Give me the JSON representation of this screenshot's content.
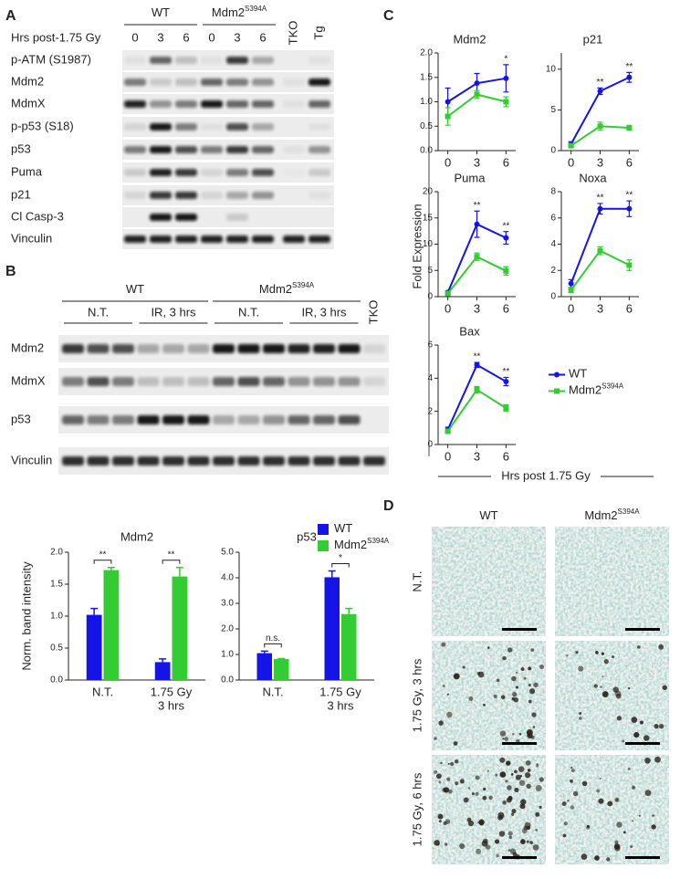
{
  "panel_labels": [
    "A",
    "B",
    "C",
    "D"
  ],
  "blot_a": {
    "groups": [
      {
        "text": "WT"
      },
      {
        "text": "Mdm2",
        "sup": "S394A"
      }
    ],
    "time_label": "Hrs post-1.75 Gy",
    "lanes": [
      "0",
      "3",
      "6",
      "0",
      "3",
      "6"
    ],
    "controls": [
      "TKO",
      "Tg"
    ],
    "rows": [
      "p-ATM (S1987)",
      "Mdm2",
      "MdmX",
      "p-p53 (S18)",
      "p53",
      "Puma",
      "p21",
      "Cl Casp-3",
      "Vinculin"
    ]
  },
  "blot_b": {
    "groups": [
      {
        "text": "WT"
      },
      {
        "text": "Mdm2",
        "sup": "S394A"
      }
    ],
    "treatments": [
      "N.T.",
      "IR, 3 hrs",
      "N.T.",
      "IR, 3 hrs"
    ],
    "controls": [
      "TKO"
    ],
    "rows": [
      "Mdm2",
      "MdmX",
      "p53",
      "Vinculin"
    ]
  },
  "bar_y_label": "Norm. band intensity",
  "line_y_label": "Fold Expression",
  "line_x_label": "Hrs post 1.75 Gy",
  "chart_data": [
    {
      "type": "bar",
      "title": "Mdm2",
      "categories": [
        [
          "N.T."
        ],
        [
          "1.75 Gy",
          "3 hrs"
        ]
      ],
      "series": [
        {
          "color": "#1414e6",
          "values": [
            1.02,
            0.28
          ],
          "errors": [
            0.1,
            0.05
          ]
        },
        {
          "color": "#33cc33",
          "values": [
            1.72,
            1.62
          ],
          "errors": [
            0.04,
            0.14
          ]
        }
      ],
      "annotations": [
        "**",
        "**"
      ],
      "ylim": [
        0,
        2
      ],
      "yticks": [
        {
          "value": 0,
          "label": "0.0"
        },
        {
          "value": 0.5,
          "label": "0.5"
        },
        {
          "value": 1,
          "label": "1.0"
        },
        {
          "value": 1.5,
          "label": "1.5"
        },
        {
          "value": 2,
          "label": "2.0"
        }
      ]
    },
    {
      "type": "bar",
      "title": "p53",
      "categories": [
        [
          "N.T."
        ],
        [
          "1.75 Gy",
          "3 hrs"
        ]
      ],
      "series": [
        {
          "name": "WT",
          "color": "#1414e6",
          "values": [
            1.05,
            4.02
          ],
          "errors": [
            0.08,
            0.25
          ]
        },
        {
          "name": "Mdm2",
          "name_sup": "S394A",
          "color": "#33cc33",
          "values": [
            0.82,
            2.58
          ],
          "errors": [
            0.02,
            0.22
          ]
        }
      ],
      "annotations": [
        "n.s.",
        "*"
      ],
      "ylim": [
        0,
        5
      ],
      "legend": "upper right",
      "yticks": [
        {
          "value": 0,
          "label": "0.0"
        },
        {
          "value": 1,
          "label": "1.0"
        },
        {
          "value": 2,
          "label": "2.0"
        },
        {
          "value": 3,
          "label": "3.0"
        },
        {
          "value": 4,
          "label": "4.0"
        },
        {
          "value": 5,
          "label": "5.0"
        }
      ]
    },
    {
      "type": "line",
      "title": "Mdm2",
      "x": [
        0,
        3,
        6
      ],
      "xlim": [
        -1,
        7
      ],
      "xticks": [
        0,
        3,
        6
      ],
      "ylim": [
        0,
        2
      ],
      "yticks": [
        {
          "value": 0,
          "label": "0.0"
        },
        {
          "value": 0.5,
          "label": "0.5"
        },
        {
          "value": 1,
          "label": "1.0"
        },
        {
          "value": 1.5,
          "label": "1.5"
        },
        {
          "value": 2,
          "label": "2.0"
        }
      ],
      "series": [
        {
          "color": "#1414e6",
          "values": [
            1.0,
            1.38,
            1.48
          ],
          "errors": [
            0.28,
            0.2,
            0.28
          ]
        },
        {
          "color": "#33cc33",
          "values": [
            0.7,
            1.15,
            1.0
          ],
          "errors": [
            0.18,
            0.08,
            0.1
          ]
        }
      ],
      "annotations": [
        {
          "x": 6,
          "text": "*"
        }
      ]
    },
    {
      "type": "line",
      "title": "p21",
      "x": [
        0,
        3,
        6
      ],
      "xlim": [
        -1,
        7
      ],
      "xticks": [
        0,
        3,
        6
      ],
      "ylim": [
        0,
        12
      ],
      "yticks": [
        0,
        5,
        10
      ],
      "series": [
        {
          "color": "#1414e6",
          "values": [
            0.8,
            7.3,
            9.0
          ],
          "errors": [
            0.3,
            0.4,
            0.6
          ]
        },
        {
          "color": "#33cc33",
          "values": [
            0.6,
            3.0,
            2.8
          ],
          "errors": [
            0.2,
            0.5,
            0.3
          ]
        }
      ],
      "annotations": [
        {
          "x": 3,
          "text": "**"
        },
        {
          "x": 6,
          "text": "**"
        }
      ]
    },
    {
      "type": "line",
      "title": "Puma",
      "x": [
        0,
        3,
        6
      ],
      "xlim": [
        -1,
        7
      ],
      "xticks": [
        0,
        3,
        6
      ],
      "ylim": [
        0,
        20
      ],
      "yticks": [
        0,
        5,
        10,
        15,
        20
      ],
      "series": [
        {
          "color": "#1414e6",
          "values": [
            0.8,
            13.8,
            11.2
          ],
          "errors": [
            0.3,
            2.5,
            1.2
          ]
        },
        {
          "color": "#33cc33",
          "values": [
            0.6,
            7.6,
            4.9
          ],
          "errors": [
            0.3,
            0.7,
            0.8
          ]
        }
      ],
      "annotations": [
        {
          "x": 3,
          "text": "**"
        },
        {
          "x": 6,
          "text": "**"
        }
      ]
    },
    {
      "type": "line",
      "title": "Noxa",
      "x": [
        0,
        3,
        6
      ],
      "xlim": [
        -1,
        7
      ],
      "xticks": [
        0,
        3,
        6
      ],
      "ylim": [
        0,
        8
      ],
      "yticks": [
        0,
        2,
        4,
        6,
        8
      ],
      "series": [
        {
          "color": "#1414e6",
          "values": [
            1.0,
            6.7,
            6.7
          ],
          "errors": [
            0.3,
            0.4,
            0.6
          ]
        },
        {
          "color": "#33cc33",
          "values": [
            0.5,
            3.5,
            2.4
          ],
          "errors": [
            0.2,
            0.3,
            0.4
          ]
        }
      ],
      "annotations": [
        {
          "x": 3,
          "text": "**"
        },
        {
          "x": 6,
          "text": "**"
        }
      ]
    },
    {
      "type": "line",
      "title": "Bax",
      "x": [
        0,
        3,
        6
      ],
      "xlim": [
        -1,
        7
      ],
      "xticks": [
        0,
        3,
        6
      ],
      "ylim": [
        0,
        6
      ],
      "yticks": [
        0,
        2,
        4,
        6
      ],
      "legend": "right",
      "series": [
        {
          "name": "WT",
          "color": "#1414e6",
          "values": [
            0.9,
            4.8,
            3.8
          ],
          "errors": [
            0.15,
            0.15,
            0.25
          ]
        },
        {
          "name": "Mdm2",
          "name_sup": "S394A",
          "color": "#33cc33",
          "values": [
            0.8,
            3.3,
            2.2
          ],
          "errors": [
            0.1,
            0.2,
            0.2
          ]
        }
      ],
      "annotations": [
        {
          "x": 3,
          "text": "**"
        },
        {
          "x": 6,
          "text": "**"
        }
      ]
    }
  ],
  "histology": {
    "columns": [
      {
        "text": "WT"
      },
      {
        "text": "Mdm2",
        "sup": "S394A"
      }
    ],
    "rows": [
      "N.T.",
      "1.75 Gy, 3 hrs",
      "1.75 Gy, 6 hrs"
    ]
  }
}
